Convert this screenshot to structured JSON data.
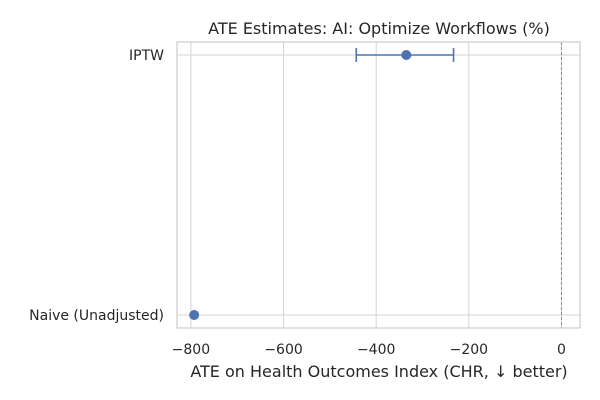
{
  "chart_data": {
    "type": "scatter",
    "title": "ATE Estimates: AI: Optimize Workflows (%)",
    "xlabel": "ATE on Health Outcomes Index (CHR, ↓ better)",
    "ylabel": "",
    "xlim": [
      -830,
      40
    ],
    "xticks": [
      -800,
      -600,
      -400,
      -200,
      0
    ],
    "xtick_labels": [
      "−800",
      "−600",
      "−400",
      "−200",
      "0"
    ],
    "categories": [
      "IPTW",
      "Naive (Unadjusted)"
    ],
    "points": [
      {
        "category": "IPTW",
        "estimate": -335,
        "ci_low": -443,
        "ci_high": -233
      },
      {
        "category": "Naive (Unadjusted)",
        "estimate": -793,
        "ci_low": null,
        "ci_high": null
      }
    ],
    "reference_line": {
      "x": 0,
      "style": "dashed"
    },
    "grid": true,
    "colors": {
      "marker": "#4c72b0",
      "grid": "#d3d3d3",
      "axes": "#cccccc",
      "refline": "#8c8c8c"
    }
  }
}
